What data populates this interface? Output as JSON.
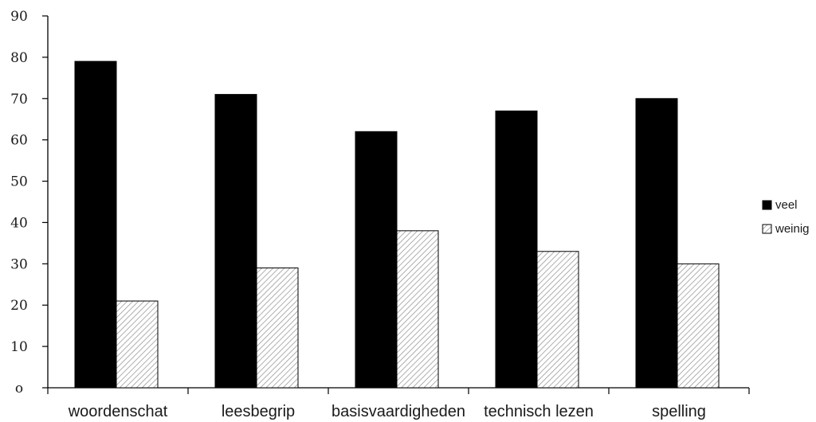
{
  "chart_data": {
    "type": "bar",
    "categories": [
      "woordenschat",
      "leesbegrip",
      "basisvaardigheden",
      "technisch lezen",
      "spelling"
    ],
    "series": [
      {
        "name": "veel",
        "values": [
          79,
          71,
          62,
          67,
          70
        ],
        "color": "#000000",
        "pattern": "solid"
      },
      {
        "name": "weinig",
        "values": [
          21,
          29,
          38,
          33,
          30
        ],
        "color": "#ffffff",
        "pattern": "diagonal-hatch"
      }
    ],
    "y_ticks": [
      "o",
      "10",
      "20",
      "30",
      "40",
      "50",
      "60",
      "70",
      "80",
      "90"
    ],
    "ylim": [
      0,
      90
    ],
    "grid": false,
    "legend_position": "right",
    "title": "",
    "xlabel": "",
    "ylabel": ""
  }
}
